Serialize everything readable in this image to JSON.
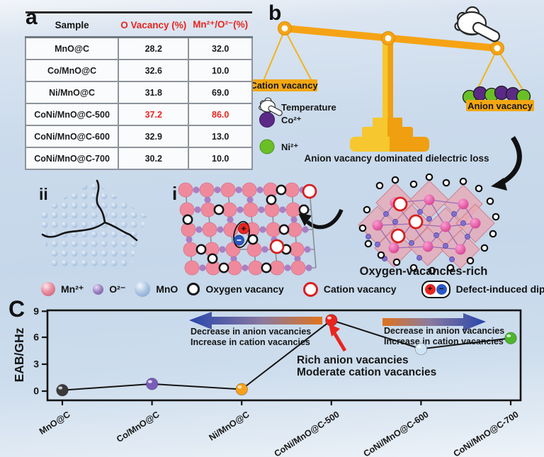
{
  "panels": {
    "a": "a",
    "b": "b",
    "c": "C"
  },
  "table": {
    "headers": [
      "Sample",
      "O Vacancy (%)",
      "Mn²⁺/O²⁻(%)"
    ],
    "rows": [
      {
        "sample": "MnO@C",
        "o_vacancy": "28.2",
        "ratio": "32.0",
        "highlight": false
      },
      {
        "sample": "Co/MnO@C",
        "o_vacancy": "32.6",
        "ratio": "10.0",
        "highlight": false
      },
      {
        "sample": "Ni/MnO@C",
        "o_vacancy": "31.8",
        "ratio": "69.0",
        "highlight": false
      },
      {
        "sample": "CoNi/MnO@C-500",
        "o_vacancy": "37.2",
        "ratio": "86.0",
        "highlight": true
      },
      {
        "sample": "CoNi/MnO@C-600",
        "o_vacancy": "32.9",
        "ratio": "13.0",
        "highlight": false
      },
      {
        "sample": "CoNi/MnO@C-700",
        "o_vacancy": "30.2",
        "ratio": "10.0",
        "highlight": false
      }
    ]
  },
  "balance": {
    "left_pan_label": "Cation vacancy",
    "right_pan_label": "Anion vacancy",
    "legend": [
      {
        "name": "temperature",
        "label": "Temperature"
      },
      {
        "name": "co-ion",
        "label": "Co²⁺",
        "color": "#5b2a86"
      },
      {
        "name": "ni-ion",
        "label": "Ni²⁺",
        "color": "#6abf27"
      }
    ],
    "caption": "Anion vacancy dominated dielectric loss"
  },
  "structures": {
    "grain_label": "ii",
    "lattice_label": "i",
    "crystal_caption": "Oxygen-vacancies-rich"
  },
  "atom_legend": {
    "items": [
      {
        "name": "mn-ion",
        "label": "Mn²⁺",
        "color": "#e98ea0"
      },
      {
        "name": "o-ion",
        "label": "O²⁻",
        "color": "#9a7fc1"
      },
      {
        "name": "mno",
        "label": "MnO",
        "color": "#a9c3e2"
      },
      {
        "name": "oxygen-vacancy",
        "label": "Oxygen vacancy",
        "ring": "#151515"
      },
      {
        "name": "cation-vacancy",
        "label": "Cation vacancy",
        "ring": "#d81f1f"
      },
      {
        "name": "dipoles",
        "label": "Defect-induced dipoles",
        "plus": "+",
        "minus": "−",
        "plus_color": "#e8251f",
        "minus_color": "#2a57c4"
      }
    ]
  },
  "chart_data": {
    "type": "line",
    "ylabel": "EAB/GHz",
    "categories": [
      "MnO@C",
      "Co/MnO@C",
      "Ni/MnO@C",
      "CoNi/MnO@C-500",
      "CoNi/MnO@C-600",
      "CoNi/MnO@C-700"
    ],
    "values": [
      0.1,
      0.8,
      0.2,
      7.9,
      4.7,
      5.9
    ],
    "point_colors": [
      "#3a3a3a",
      "#7a5cb8",
      "#f7a01b",
      "#e8251f",
      "#cfe4f4",
      "#4cb52c"
    ],
    "yticks": [
      "0",
      "3",
      "6",
      "9"
    ],
    "ylim": [
      -1,
      9.6
    ],
    "grid": false,
    "legend_position": "none",
    "annotations": {
      "left_arrow_text": [
        "Decrease in anion vacancies",
        "Increase in cation vacancies"
      ],
      "right_arrow_text": [
        "Decrease in anion vacancies",
        "Increase in cation vacancies"
      ],
      "point_callout": [
        "Rich anion vacancies",
        "Moderate cation vacancies"
      ]
    }
  }
}
